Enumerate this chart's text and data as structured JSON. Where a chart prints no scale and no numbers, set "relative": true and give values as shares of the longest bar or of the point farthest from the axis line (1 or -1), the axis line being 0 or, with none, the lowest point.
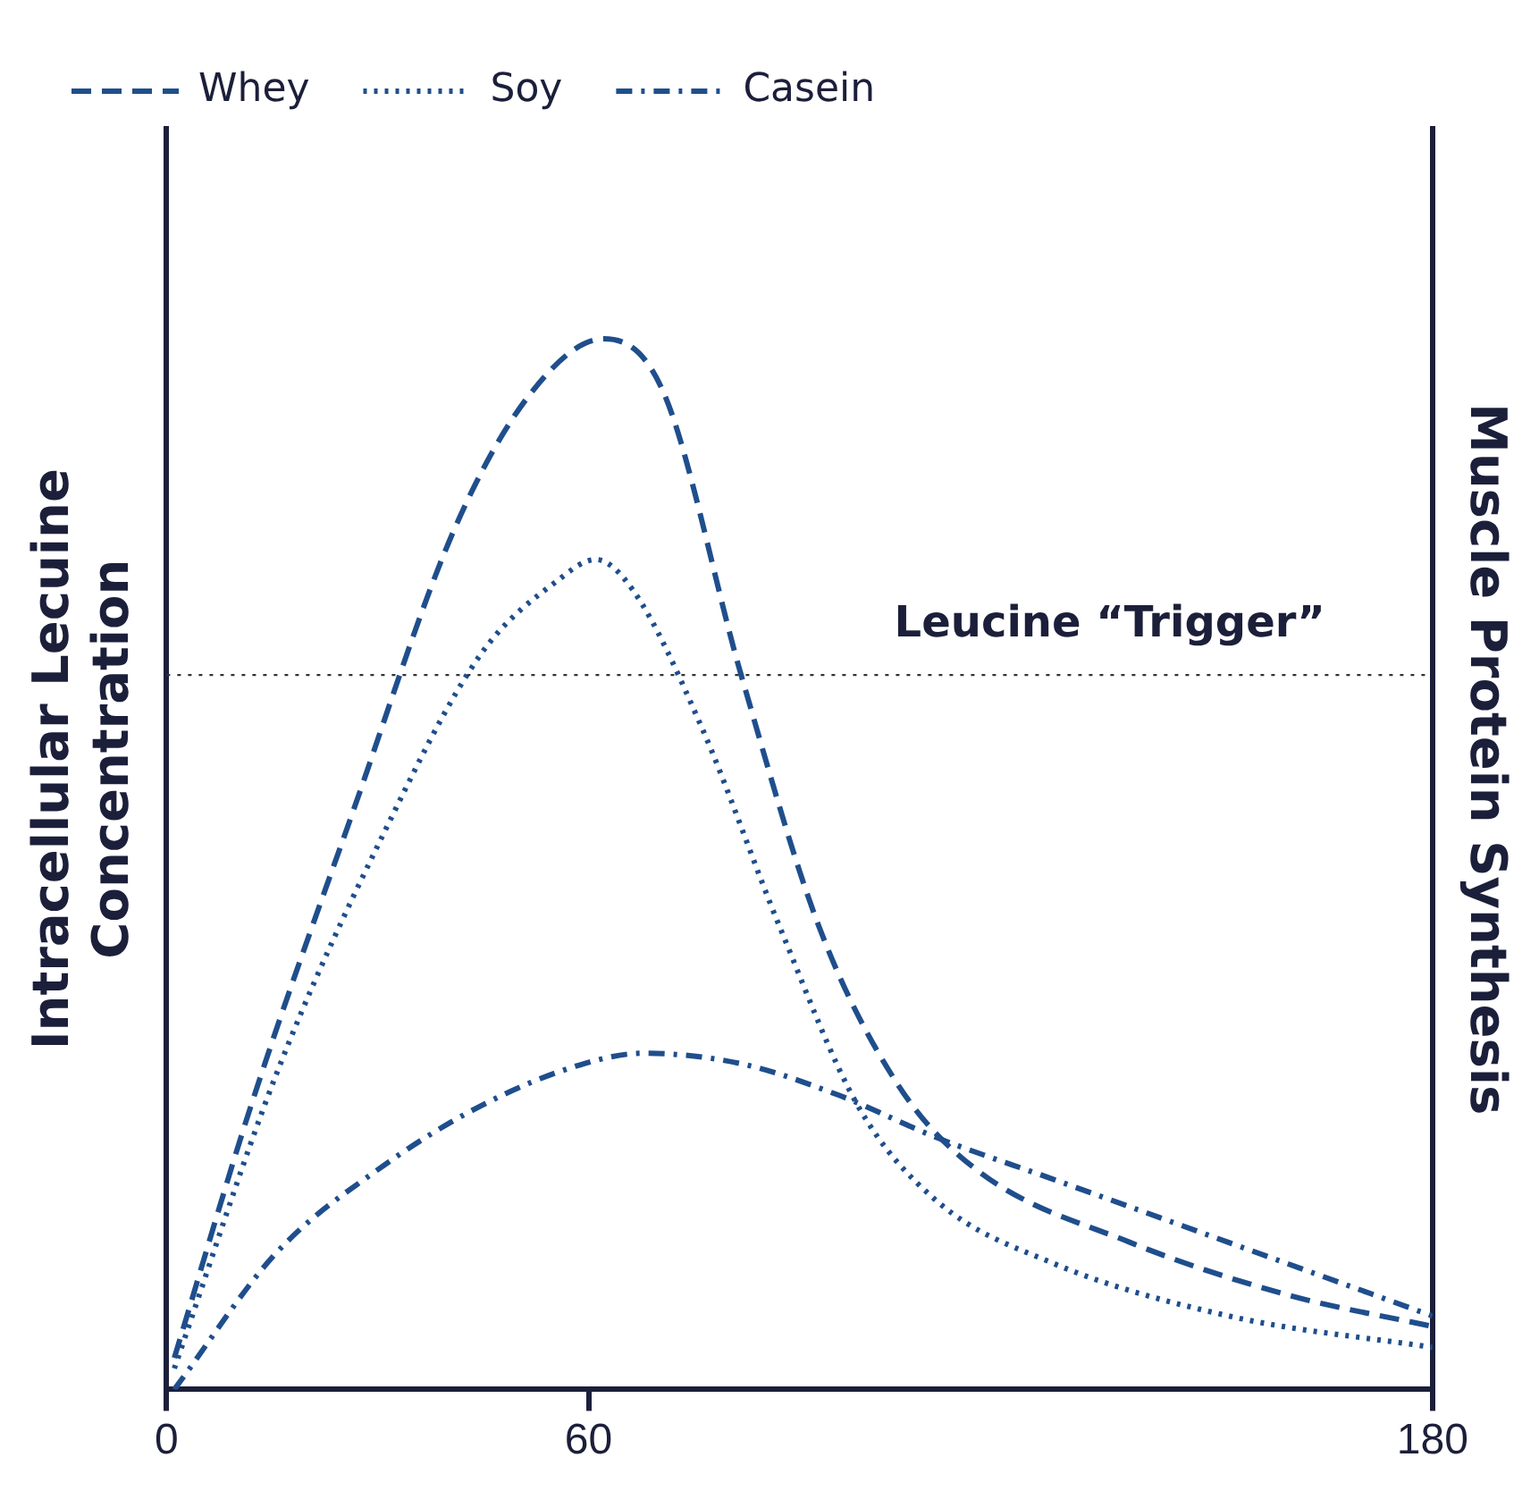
{
  "chart_data": {
    "type": "line",
    "relative": true,
    "xlim": [
      0,
      180
    ],
    "xticks": [
      0,
      60,
      180
    ],
    "ylabel": "Intracellular Lecuine\nConcentration",
    "y2label": "Muscle Protein Synthesis",
    "legend": "top left",
    "marker": "none",
    "grid": false,
    "ref_lines": [
      {
        "axis": "y",
        "value": 0.68,
        "label": "Leucine “Trigger”",
        "color": "#333333",
        "line_style": "dotted"
      }
    ],
    "series": [
      {
        "name": "Whey",
        "color": "#1f4e8c",
        "line_style": "dashed",
        "x": [
          1.1,
          12,
          26.5,
          41,
          52,
          62.2,
          70.6,
          81.7,
          92.8,
          104,
          115,
          137,
          159.4,
          180
        ],
        "values": [
          0.03,
          0.27,
          0.55,
          0.82,
          0.95,
          1,
          0.95,
          0.68,
          0.44,
          0.29,
          0.21,
          0.14,
          0.09,
          0.06
        ]
      },
      {
        "name": "Soy",
        "color": "#1f4e8c",
        "line_style": "dotted",
        "x": [
          1.1,
          15.6,
          30.2,
          44.7,
          55.6,
          61,
          66.4,
          76.1,
          87.2,
          98.3,
          109.4,
          126.1,
          151,
          180
        ],
        "values": [
          0.02,
          0.3,
          0.52,
          0.7,
          0.77,
          0.79,
          0.76,
          0.63,
          0.44,
          0.27,
          0.18,
          0.12,
          0.07,
          0.04
        ]
      },
      {
        "name": "Casein",
        "color": "#1f4e8c",
        "line_style": "dashdot",
        "x": [
          1.1,
          15.6,
          30.2,
          44.7,
          59.3,
          67.8,
          81.7,
          95.6,
          109.4,
          126.1,
          151,
          180
        ],
        "values": [
          0,
          0.13,
          0.21,
          0.27,
          0.31,
          0.32,
          0.31,
          0.28,
          0.24,
          0.2,
          0.14,
          0.07
        ]
      }
    ]
  }
}
